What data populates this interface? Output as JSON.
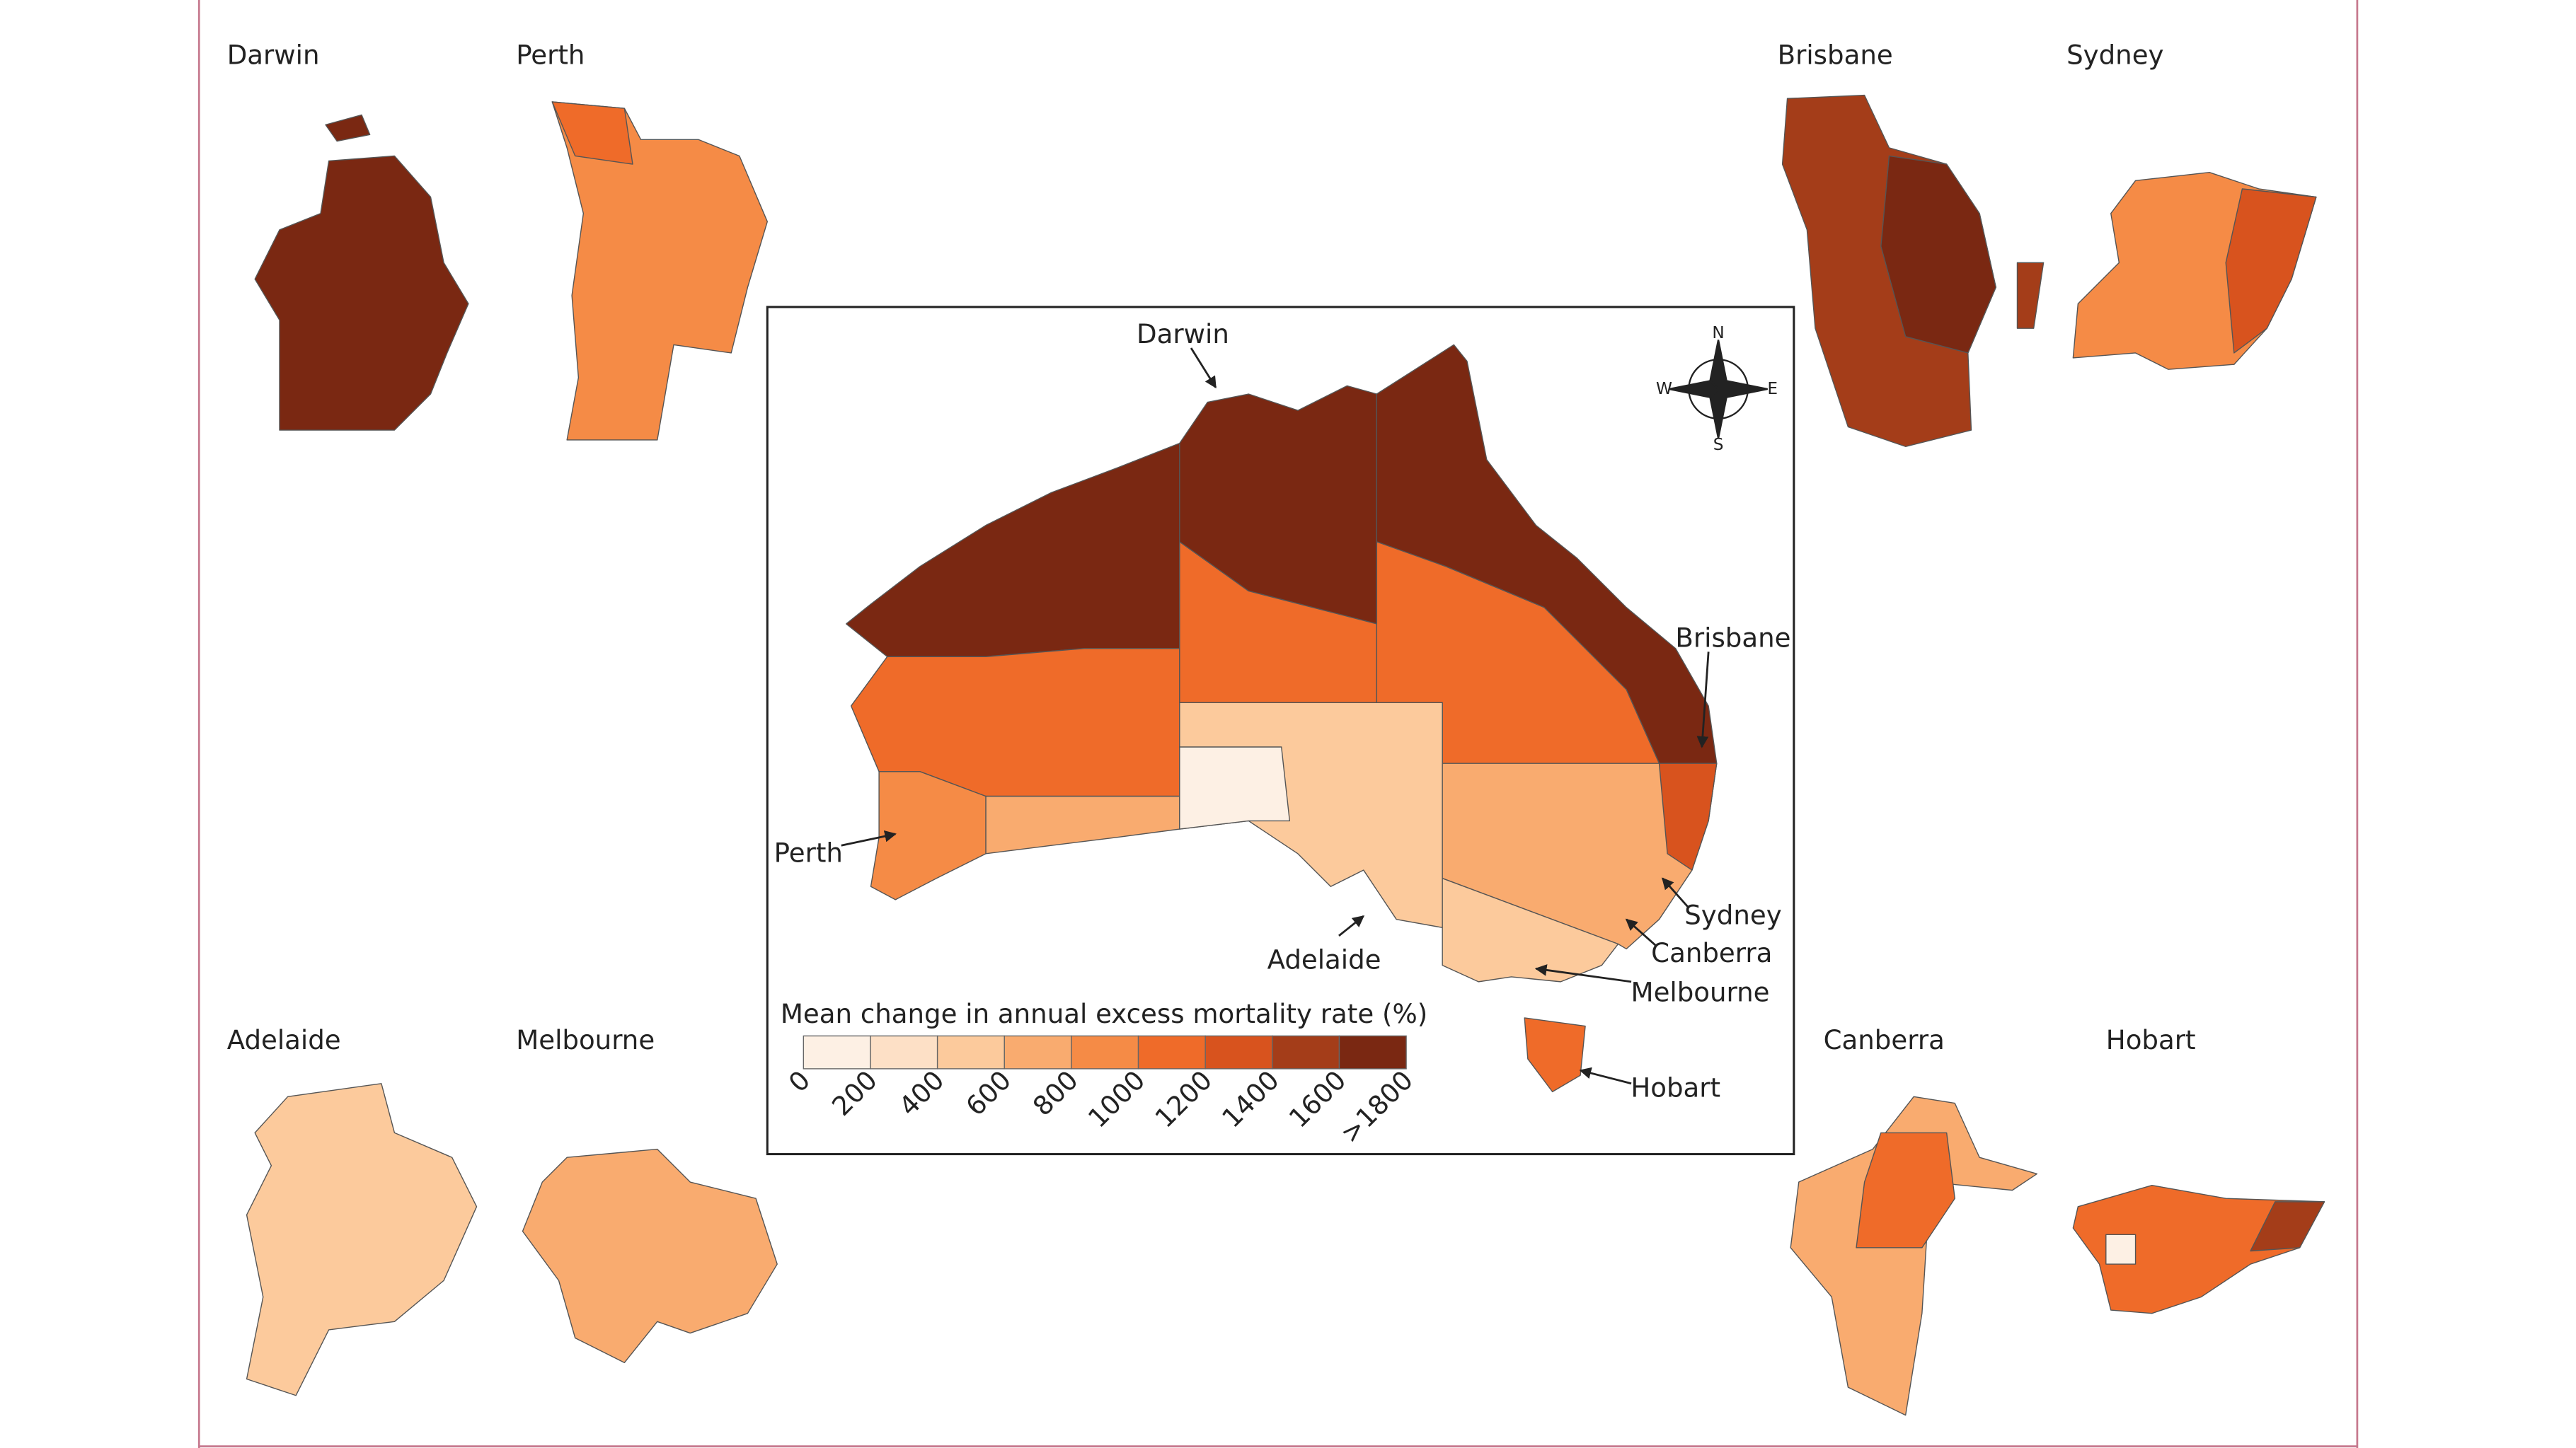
{
  "insets": [
    {
      "label": "Darwin"
    },
    {
      "label": "Perth"
    },
    {
      "label": "Brisbane"
    },
    {
      "label": "Sydney"
    },
    {
      "label": "Adelaide"
    },
    {
      "label": "Melbourne"
    },
    {
      "label": "Canberra"
    },
    {
      "label": "Hobart"
    }
  ],
  "main_map": {
    "labels": [
      "Darwin",
      "Brisbane",
      "Perth",
      "Sydney",
      "Canberra",
      "Adelaide",
      "Melbourne",
      "Hobart"
    ],
    "compass": [
      "N",
      "S",
      "W",
      "E"
    ]
  },
  "legend": {
    "title": "Mean change in annual excess mortality rate (%)",
    "ticks": [
      "0",
      "200",
      "400",
      "600",
      "800",
      "1000",
      "1200",
      "1400",
      "1600",
      ">1800"
    ],
    "colors": [
      "#fdf0e4",
      "#fde0c6",
      "#fcca9c",
      "#f9ab6f",
      "#f58b46",
      "#ef6b29",
      "#d8531e",
      "#a43d19",
      "#7a2812"
    ]
  }
}
